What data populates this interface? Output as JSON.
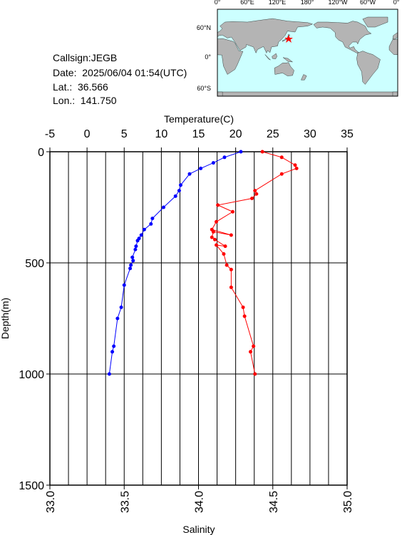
{
  "info": {
    "callsign": "Callsign:JEGB",
    "date": "Date:  2025/06/04 01:54(UTC)",
    "lat": "Lat.:  36.566",
    "lon": "Lon.:  141.750"
  },
  "map": {
    "lon_labels": [
      "0°",
      "60°E",
      "120°E",
      "180°",
      "120°W",
      "60°W",
      "0°"
    ],
    "lat_labels": [
      "60°N",
      "0°",
      "60°S"
    ]
  },
  "chart_data": {
    "type": "line",
    "x_label": "Temperature(C)",
    "x2_label": "Salinity",
    "y_label": "Depth(m)",
    "ylim": [
      0,
      1500
    ],
    "yticks": [
      0,
      500,
      1000,
      1500
    ],
    "y_inverted": true,
    "xlim": [
      -5,
      35
    ],
    "xticks": [
      -5,
      0,
      5,
      10,
      15,
      20,
      25,
      30,
      35
    ],
    "xgrid": [
      -2.5,
      0,
      2.5,
      5,
      7.5,
      10,
      12.5,
      15,
      17.5,
      20,
      22.5,
      25,
      27.5,
      30,
      32.5
    ],
    "x2lim": [
      33,
      35
    ],
    "x2ticks": [
      {
        "value": 33,
        "label": "33.0"
      },
      {
        "value": 33.5,
        "label": "33.5"
      },
      {
        "value": 34,
        "label": "34.0"
      },
      {
        "value": 34.5,
        "label": "34.5"
      },
      {
        "value": 35,
        "label": "35.0"
      }
    ],
    "grid": true,
    "series": [
      {
        "color": "#0000ff",
        "depth": [
          0,
          25,
          50,
          75,
          100,
          150,
          175,
          200,
          250,
          300,
          325,
          350,
          375,
          390,
          400,
          425,
          440,
          475,
          490,
          510,
          525,
          600,
          700,
          750,
          875,
          900,
          1000
        ],
        "values": [
          20.7,
          18.5,
          17.0,
          15.3,
          13.8,
          12.6,
          12.4,
          11.9,
          10.3,
          8.8,
          8.6,
          7.7,
          7.3,
          7.0,
          6.8,
          6.6,
          6.5,
          6.1,
          6.2,
          5.9,
          5.8,
          5.0,
          4.6,
          4.1,
          3.6,
          3.4,
          3.0
        ]
      },
      {
        "color": "#ff0000",
        "axis": "x2",
        "depth": [
          0,
          25,
          60,
          75,
          100,
          175,
          190,
          210,
          240,
          270,
          315,
          350,
          375,
          360,
          385,
          395,
          425,
          420,
          460,
          510,
          530,
          610,
          700,
          740,
          875,
          900,
          1000
        ],
        "values": [
          34.43,
          34.56,
          34.65,
          34.66,
          34.56,
          34.38,
          34.39,
          34.36,
          34.13,
          34.23,
          34.12,
          34.09,
          34.22,
          34.1,
          34.09,
          34.11,
          34.18,
          34.12,
          34.17,
          34.19,
          34.22,
          34.22,
          34.3,
          34.31,
          34.37,
          34.35,
          34.38
        ]
      }
    ]
  }
}
